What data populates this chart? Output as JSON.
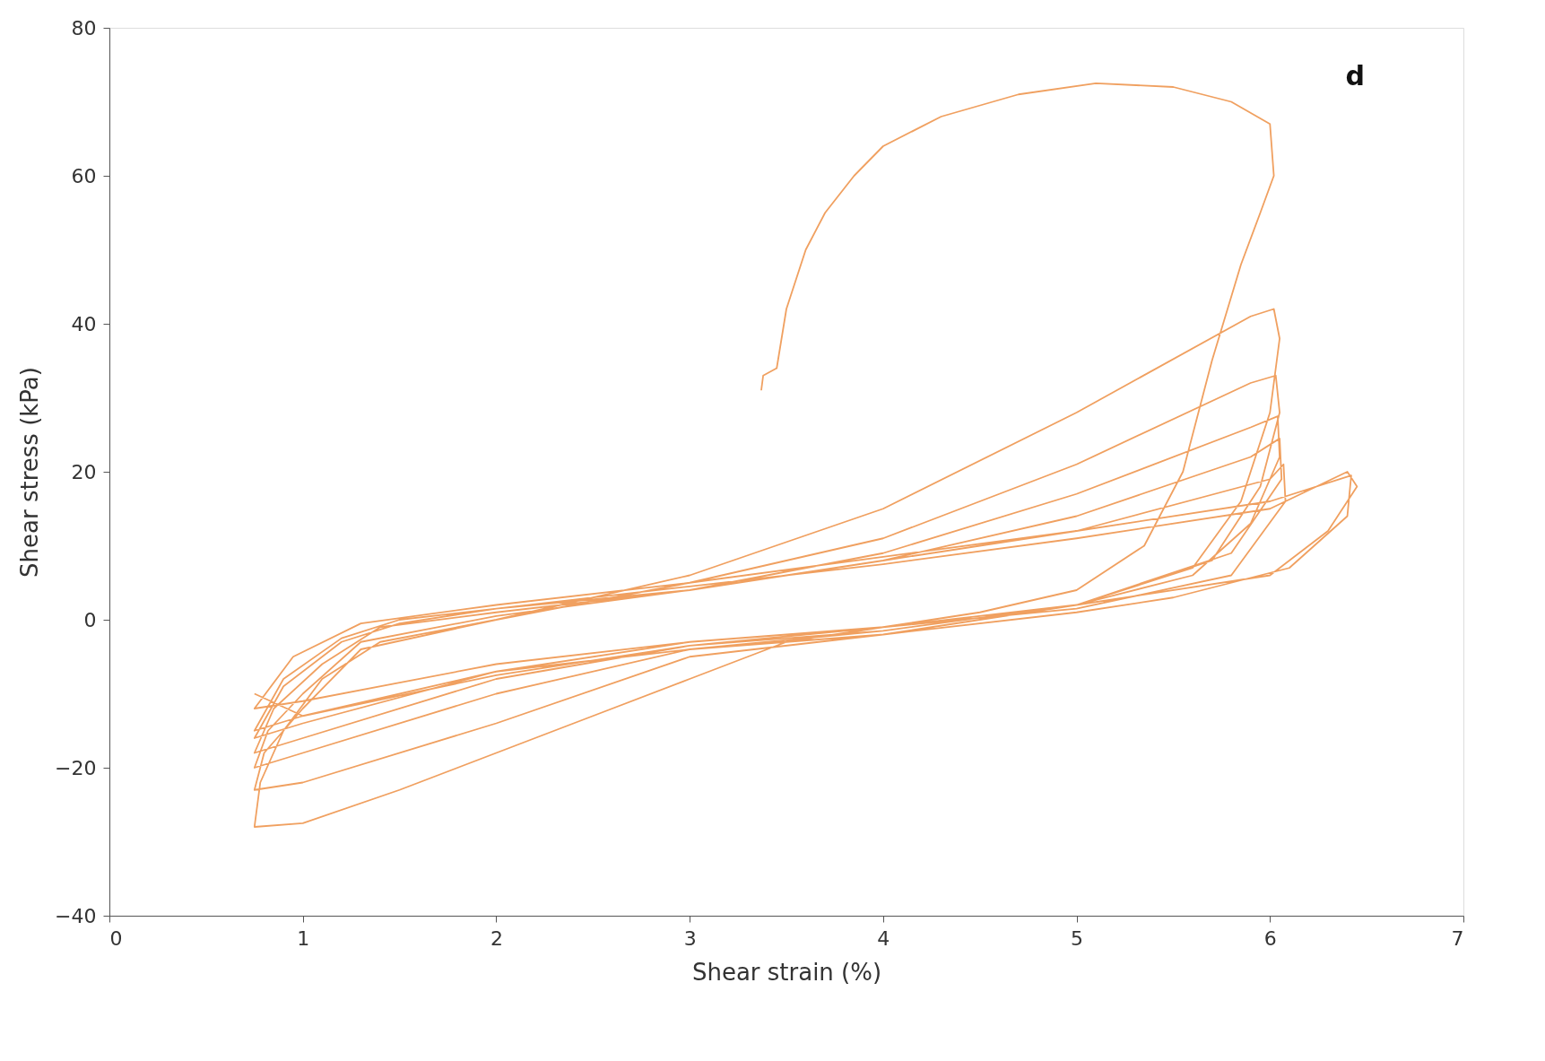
{
  "chart_data": {
    "type": "line",
    "xlabel": "Shear strain (%)",
    "ylabel": "Shear stress (kPa)",
    "annotations": [
      "d"
    ],
    "xlim": [
      0,
      7
    ],
    "xticks": [
      0,
      1,
      2,
      3,
      4,
      5,
      6,
      7
    ],
    "ylim": [
      -40,
      80
    ],
    "yticks": [
      -40,
      -20,
      0,
      20,
      40,
      60,
      80
    ],
    "grid": false,
    "marker": "none",
    "line_style": "solid",
    "series": [
      {
        "color": "#f0a060",
        "x": [
          3.37,
          3.38,
          3.45,
          3.5,
          3.6,
          3.7,
          3.85,
          4.0,
          4.3,
          4.7,
          5.1,
          5.5,
          5.8,
          6.0,
          6.02,
          5.95,
          5.85,
          5.7,
          5.55,
          5.35,
          5.0,
          4.5,
          4.0,
          3.5,
          3.0,
          2.5,
          2.0,
          1.5,
          1.0,
          0.75,
          0.78,
          0.9,
          1.1,
          1.4,
          2,
          3,
          4,
          5,
          5.9,
          6.02,
          6.05,
          6.0,
          5.85,
          5.6,
          5.0,
          4.0,
          3.0,
          2.0,
          1.0,
          0.75,
          0.8,
          1.0,
          1.3,
          2,
          3,
          4,
          5,
          5.9,
          6.03,
          6.05,
          5.95,
          5.7,
          5.0,
          4,
          3,
          2,
          1,
          0.75,
          0.82,
          1.0,
          1.3,
          2,
          3,
          4,
          5,
          5.9,
          6.04,
          6.05,
          5.9,
          5.6,
          5,
          4,
          3,
          2,
          1,
          0.75,
          0.85,
          1.1,
          1.4,
          2,
          3,
          4,
          5,
          5.9,
          6.05,
          6.06,
          5.8,
          5,
          4,
          3,
          2,
          1,
          0.75,
          0.9,
          1.2,
          1.5,
          2,
          3,
          4,
          5,
          6,
          6.07,
          6.08,
          5.8,
          5,
          4,
          3,
          2,
          1,
          0.75,
          0.9,
          1.2,
          1.5,
          2,
          3,
          4,
          5,
          6,
          6.4,
          6.45,
          6.3,
          6.0,
          5,
          4,
          3,
          2,
          1,
          0.75,
          0.95,
          1.3,
          2,
          3,
          4,
          5,
          6,
          6.42,
          6.4,
          6.1,
          5.5,
          5,
          4,
          3,
          2,
          1,
          0.75
        ],
        "values": [
          31,
          33,
          34,
          42,
          50,
          55,
          60,
          64,
          68,
          71,
          72.5,
          72,
          70,
          67,
          60,
          55,
          48,
          35,
          20,
          10,
          4,
          1,
          -1,
          -3,
          -8,
          -13,
          -18,
          -23,
          -27.5,
          -28,
          -22,
          -15,
          -8,
          -3,
          0,
          6,
          15,
          28,
          41,
          42,
          38,
          28,
          16,
          7,
          2,
          -2,
          -5,
          -14,
          -22,
          -23,
          -18,
          -12,
          -4,
          0,
          5,
          11,
          21,
          32,
          33,
          28,
          18,
          8,
          2,
          -1.5,
          -4,
          -10,
          -18,
          -20,
          -15,
          -10,
          -3,
          0.5,
          4,
          9,
          17,
          26,
          27.5,
          22,
          13,
          6,
          2,
          -1.5,
          -3.5,
          -8,
          -16,
          -18,
          -12,
          -6,
          -1,
          1,
          4,
          8,
          14,
          22,
          24.5,
          19,
          9,
          2,
          -1,
          -3,
          -7,
          -14,
          -16,
          -9,
          -3,
          -0.5,
          1.5,
          4,
          8,
          12,
          19,
          21,
          16,
          6,
          1.5,
          -1,
          -3.5,
          -7.5,
          -13,
          -15,
          -8,
          -2.5,
          0,
          1.5,
          4.5,
          7.5,
          11,
          15,
          20,
          18,
          12,
          6,
          2,
          -1,
          -3,
          -6,
          -11,
          -12,
          -5,
          -0.5,
          2,
          5,
          8.5,
          12,
          16,
          19.5,
          14,
          7,
          3,
          1,
          -2,
          -4,
          -7,
          -13,
          -10
        ]
      }
    ]
  }
}
